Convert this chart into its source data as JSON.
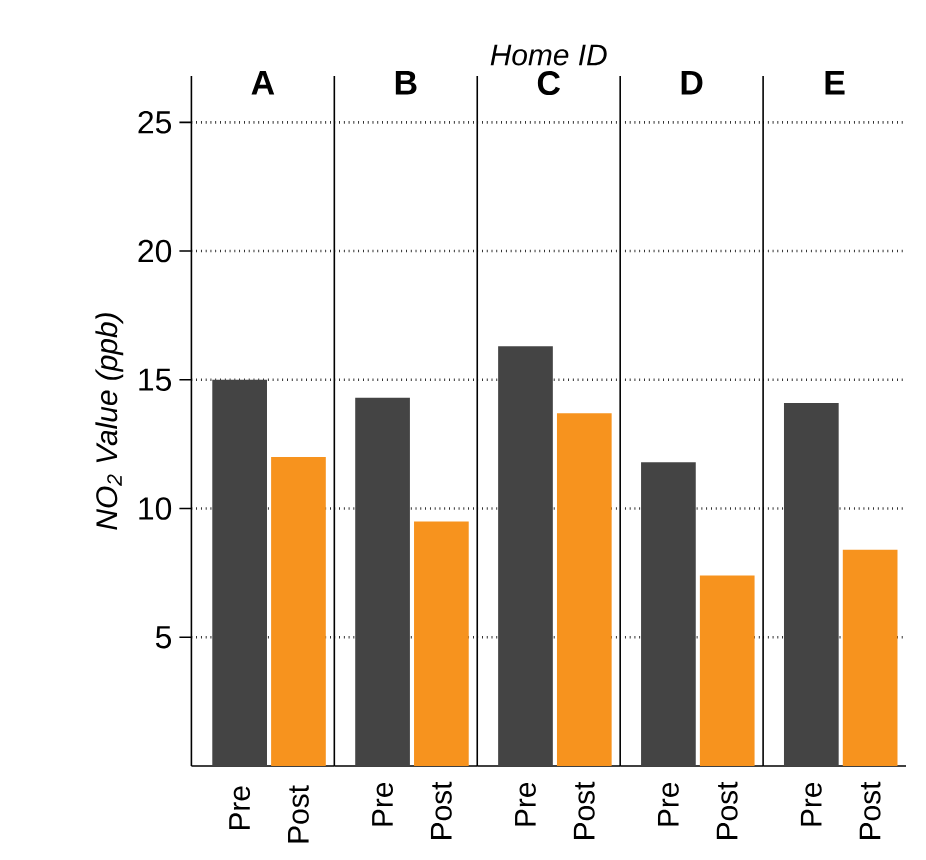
{
  "chart_data": [
    {
      "type": "bar",
      "title": "A",
      "ylabel": "NO$_{2}$ Value (ppb)",
      "annotations": [
        "Home ID"
      ],
      "categories": [
        "Pre",
        "Post"
      ],
      "values": [
        15.0,
        12.0
      ],
      "colors": [
        "#444444",
        "#f7931e"
      ],
      "ylim": [
        0,
        26.8
      ],
      "yticks": [
        5,
        10,
        15,
        20,
        25
      ],
      "grid": "y"
    },
    {
      "type": "bar",
      "title": "B",
      "categories": [
        "Pre",
        "Post"
      ],
      "values": [
        14.3,
        9.5
      ],
      "colors": [
        "#444444",
        "#f7931e"
      ],
      "ylim": [
        0,
        26.8
      ],
      "yticks": [
        5,
        10,
        15,
        20,
        25
      ],
      "grid": "y",
      "tick_labels": "x"
    },
    {
      "type": "bar",
      "title": "C",
      "categories": [
        "Pre",
        "Post"
      ],
      "values": [
        16.3,
        13.7
      ],
      "colors": [
        "#444444",
        "#f7931e"
      ],
      "ylim": [
        0,
        26.8
      ],
      "yticks": [
        5,
        10,
        15,
        20,
        25
      ],
      "grid": "y",
      "tick_labels": "x"
    },
    {
      "type": "bar",
      "title": "D",
      "categories": [
        "Pre",
        "Post"
      ],
      "values": [
        11.8,
        7.4
      ],
      "colors": [
        "#444444",
        "#f7931e"
      ],
      "ylim": [
        0,
        26.8
      ],
      "yticks": [
        5,
        10,
        15,
        20,
        25
      ],
      "grid": "y",
      "tick_labels": "x"
    },
    {
      "type": "bar",
      "title": "E",
      "categories": [
        "Pre",
        "Post"
      ],
      "values": [
        14.1,
        8.4
      ],
      "colors": [
        "#444444",
        "#f7931e"
      ],
      "ylim": [
        0,
        26.8
      ],
      "yticks": [
        5,
        10,
        15,
        20,
        25
      ],
      "grid": "y",
      "tick_labels": "x"
    }
  ]
}
